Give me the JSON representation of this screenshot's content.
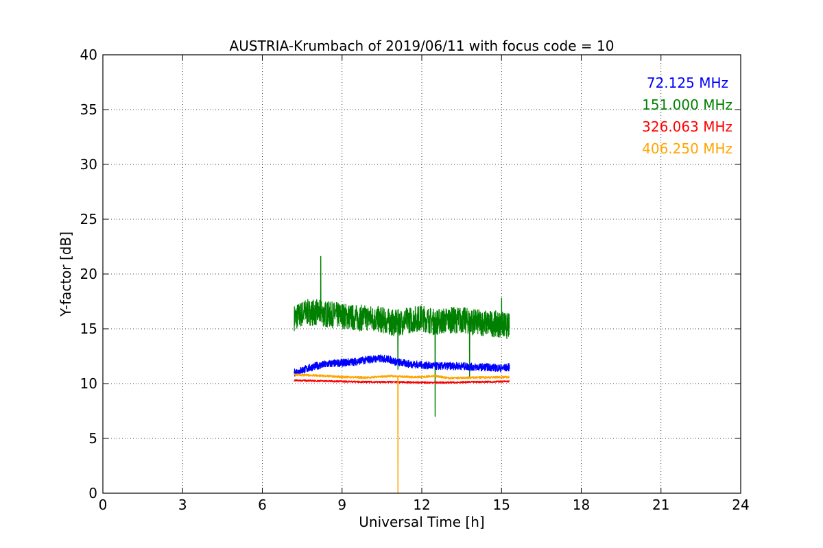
{
  "chart_data": {
    "type": "line",
    "title": "AUSTRIA-Krumbach of 2019/06/11 with focus code = 10",
    "xlabel": "Universal Time [h]",
    "ylabel": "Y-factor [dB]",
    "xlim": [
      0,
      24
    ],
    "ylim": [
      0,
      40
    ],
    "xticks": [
      0,
      3,
      6,
      9,
      12,
      15,
      18,
      21,
      24
    ],
    "yticks": [
      0,
      5,
      10,
      15,
      20,
      25,
      30,
      35,
      40
    ],
    "grid": true,
    "legend_position": "top-right",
    "series": [
      {
        "name": "72.125 MHz",
        "color": "#0000ff",
        "x_range": [
          7.2,
          15.3
        ],
        "spread": 0.35,
        "spikes": [],
        "points": [
          [
            7.2,
            11.0
          ],
          [
            7.6,
            11.3
          ],
          [
            8.0,
            11.6
          ],
          [
            8.5,
            11.8
          ],
          [
            9.0,
            11.9
          ],
          [
            9.5,
            12.0
          ],
          [
            10.0,
            12.2
          ],
          [
            10.5,
            12.3
          ],
          [
            10.8,
            12.2
          ],
          [
            11.0,
            12.0
          ],
          [
            11.5,
            11.8
          ],
          [
            12.0,
            11.7
          ],
          [
            12.5,
            11.6
          ],
          [
            13.0,
            11.6
          ],
          [
            13.5,
            11.6
          ],
          [
            14.0,
            11.5
          ],
          [
            14.5,
            11.5
          ],
          [
            15.0,
            11.4
          ],
          [
            15.3,
            11.5
          ]
        ]
      },
      {
        "name": "151.000 MHz",
        "color": "#008000",
        "x_range": [
          7.2,
          15.3
        ],
        "spread": 1.2,
        "spikes": [
          [
            8.2,
            21.6
          ],
          [
            11.1,
            11.3
          ],
          [
            12.5,
            7.0
          ],
          [
            13.8,
            10.6
          ],
          [
            15.0,
            17.8
          ]
        ],
        "points": [
          [
            7.2,
            16.0
          ],
          [
            7.6,
            16.5
          ],
          [
            8.0,
            16.5
          ],
          [
            8.5,
            16.3
          ],
          [
            9.0,
            16.2
          ],
          [
            9.5,
            16.0
          ],
          [
            10.0,
            16.0
          ],
          [
            10.5,
            15.8
          ],
          [
            11.0,
            15.5
          ],
          [
            11.5,
            15.8
          ],
          [
            12.0,
            16.0
          ],
          [
            12.5,
            15.6
          ],
          [
            13.0,
            15.8
          ],
          [
            13.5,
            15.8
          ],
          [
            14.0,
            15.6
          ],
          [
            14.5,
            15.5
          ],
          [
            15.0,
            15.4
          ],
          [
            15.3,
            15.2
          ]
        ]
      },
      {
        "name": "326.063 MHz",
        "color": "#ff0000",
        "x_range": [
          7.2,
          15.3
        ],
        "spread": 0.08,
        "spikes": [],
        "points": [
          [
            7.2,
            10.3
          ],
          [
            8.0,
            10.25
          ],
          [
            9.0,
            10.2
          ],
          [
            10.0,
            10.15
          ],
          [
            11.0,
            10.15
          ],
          [
            12.0,
            10.1
          ],
          [
            13.0,
            10.1
          ],
          [
            14.0,
            10.15
          ],
          [
            15.3,
            10.2
          ]
        ]
      },
      {
        "name": "406.250 MHz",
        "color": "#ffa500",
        "x_range": [
          7.2,
          15.3
        ],
        "spread": 0.1,
        "spikes": [
          [
            11.1,
            0.0
          ]
        ],
        "points": [
          [
            7.2,
            10.8
          ],
          [
            8.0,
            10.75
          ],
          [
            9.0,
            10.6
          ],
          [
            10.0,
            10.55
          ],
          [
            10.8,
            10.7
          ],
          [
            11.5,
            10.6
          ],
          [
            12.0,
            10.6
          ],
          [
            12.5,
            10.7
          ],
          [
            13.0,
            10.5
          ],
          [
            14.0,
            10.55
          ],
          [
            15.3,
            10.6
          ]
        ]
      }
    ]
  }
}
